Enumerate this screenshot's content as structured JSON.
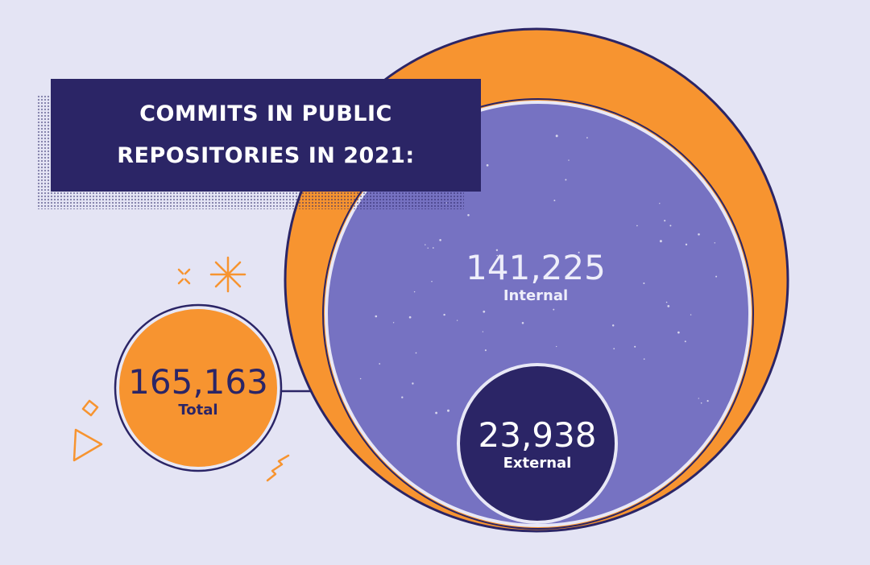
{
  "chart_data": {
    "type": "bubble",
    "title": "COMMITS IN PUBLIC REPOSITORIES IN 2021:",
    "title_lines": [
      "COMMITS IN PUBLIC",
      "REPOSITORIES IN 2021:"
    ],
    "bubbles": [
      {
        "label": "Total",
        "value_text": "165,163",
        "value": 165163
      },
      {
        "label": "Internal",
        "value_text": "141,225",
        "value": 141225
      },
      {
        "label": "External",
        "value_text": "23,938",
        "value": 23938
      }
    ]
  },
  "colors": {
    "background": "#e4e4f4",
    "navy": "#2b2566",
    "orange": "#f79430",
    "purple": "#7672c2",
    "outline_light": "#e8e8f6"
  }
}
